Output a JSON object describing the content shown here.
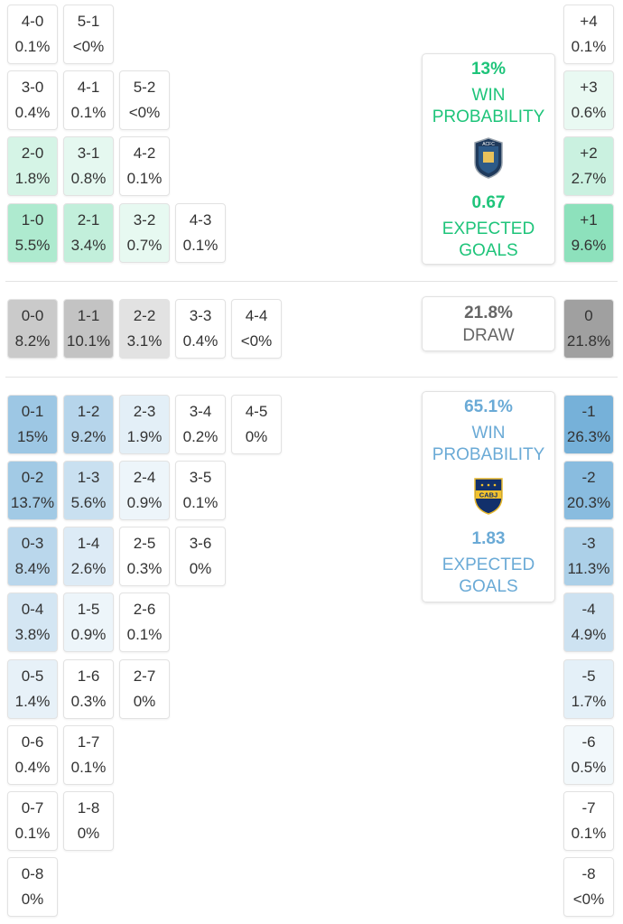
{
  "colors": {
    "home": "#1ec47a",
    "away": "#6aaad6",
    "draw": "#666666",
    "text": "#333333"
  },
  "home_summary": {
    "win_pct": "13%",
    "win_label_1": "WIN",
    "win_label_2": "PROBABILITY",
    "xg": "0.67",
    "xg_label_1": "EXPECTED",
    "xg_label_2": "GOALS",
    "logo_icon": "acfc-crest-icon"
  },
  "draw_summary": {
    "pct": "21.8%",
    "label": "DRAW"
  },
  "away_summary": {
    "win_pct": "65.1%",
    "win_label_1": "WIN",
    "win_label_2": "PROBABILITY",
    "xg": "1.83",
    "xg_label_1": "EXPECTED",
    "xg_label_2": "GOALS",
    "logo_icon": "cabj-crest-icon"
  },
  "scores": [
    {
      "score": "4-0",
      "prob": "0.1%",
      "side": "home"
    },
    {
      "score": "5-1",
      "prob": "<0%",
      "side": "home"
    },
    {
      "score": "3-0",
      "prob": "0.4%",
      "side": "home"
    },
    {
      "score": "4-1",
      "prob": "0.1%",
      "side": "home"
    },
    {
      "score": "5-2",
      "prob": "<0%",
      "side": "home"
    },
    {
      "score": "2-0",
      "prob": "1.8%",
      "side": "home"
    },
    {
      "score": "3-1",
      "prob": "0.8%",
      "side": "home"
    },
    {
      "score": "4-2",
      "prob": "0.1%",
      "side": "home"
    },
    {
      "score": "1-0",
      "prob": "5.5%",
      "side": "home"
    },
    {
      "score": "2-1",
      "prob": "3.4%",
      "side": "home"
    },
    {
      "score": "3-2",
      "prob": "0.7%",
      "side": "home"
    },
    {
      "score": "4-3",
      "prob": "0.1%",
      "side": "home"
    },
    {
      "score": "0-0",
      "prob": "8.2%",
      "side": "draw"
    },
    {
      "score": "1-1",
      "prob": "10.1%",
      "side": "draw"
    },
    {
      "score": "2-2",
      "prob": "3.1%",
      "side": "draw"
    },
    {
      "score": "3-3",
      "prob": "0.4%",
      "side": "draw"
    },
    {
      "score": "4-4",
      "prob": "<0%",
      "side": "draw"
    },
    {
      "score": "0-1",
      "prob": "15%",
      "side": "away"
    },
    {
      "score": "1-2",
      "prob": "9.2%",
      "side": "away"
    },
    {
      "score": "2-3",
      "prob": "1.9%",
      "side": "away"
    },
    {
      "score": "3-4",
      "prob": "0.2%",
      "side": "away"
    },
    {
      "score": "4-5",
      "prob": "0%",
      "side": "away"
    },
    {
      "score": "0-2",
      "prob": "13.7%",
      "side": "away"
    },
    {
      "score": "1-3",
      "prob": "5.6%",
      "side": "away"
    },
    {
      "score": "2-4",
      "prob": "0.9%",
      "side": "away"
    },
    {
      "score": "3-5",
      "prob": "0.1%",
      "side": "away"
    },
    {
      "score": "0-3",
      "prob": "8.4%",
      "side": "away"
    },
    {
      "score": "1-4",
      "prob": "2.6%",
      "side": "away"
    },
    {
      "score": "2-5",
      "prob": "0.3%",
      "side": "away"
    },
    {
      "score": "3-6",
      "prob": "0%",
      "side": "away"
    },
    {
      "score": "0-4",
      "prob": "3.8%",
      "side": "away"
    },
    {
      "score": "1-5",
      "prob": "0.9%",
      "side": "away"
    },
    {
      "score": "2-6",
      "prob": "0.1%",
      "side": "away"
    },
    {
      "score": "0-5",
      "prob": "1.4%",
      "side": "away"
    },
    {
      "score": "1-6",
      "prob": "0.3%",
      "side": "away"
    },
    {
      "score": "2-7",
      "prob": "0%",
      "side": "away"
    },
    {
      "score": "0-6",
      "prob": "0.4%",
      "side": "away"
    },
    {
      "score": "1-7",
      "prob": "0.1%",
      "side": "away"
    },
    {
      "score": "0-7",
      "prob": "0.1%",
      "side": "away"
    },
    {
      "score": "1-8",
      "prob": "0%",
      "side": "away"
    },
    {
      "score": "0-8",
      "prob": "0%",
      "side": "away"
    }
  ],
  "margins": [
    {
      "margin": "+4",
      "prob": "0.1%",
      "side": "home"
    },
    {
      "margin": "+3",
      "prob": "0.6%",
      "side": "home"
    },
    {
      "margin": "+2",
      "prob": "2.7%",
      "side": "home"
    },
    {
      "margin": "+1",
      "prob": "9.6%",
      "side": "home"
    },
    {
      "margin": "0",
      "prob": "21.8%",
      "side": "draw"
    },
    {
      "margin": "-1",
      "prob": "26.3%",
      "side": "away"
    },
    {
      "margin": "-2",
      "prob": "20.3%",
      "side": "away"
    },
    {
      "margin": "-3",
      "prob": "11.3%",
      "side": "away"
    },
    {
      "margin": "-4",
      "prob": "4.9%",
      "side": "away"
    },
    {
      "margin": "-5",
      "prob": "1.7%",
      "side": "away"
    },
    {
      "margin": "-6",
      "prob": "0.5%",
      "side": "away"
    },
    {
      "margin": "-7",
      "prob": "0.1%",
      "side": "away"
    },
    {
      "margin": "-8",
      "prob": "<0%",
      "side": "away"
    }
  ]
}
